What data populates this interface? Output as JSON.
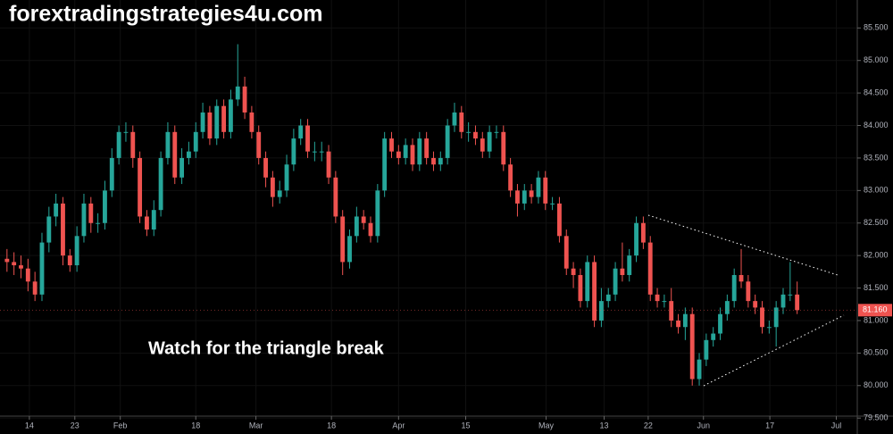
{
  "chart_data": {
    "type": "candlestick",
    "watermark": "forextradingstrategies4u.com",
    "annotation": "Watch for the triangle break",
    "up_color": "#26a69a",
    "down_color": "#ef5350",
    "ylim": [
      79.53,
      85.93
    ],
    "yticks": [
      {
        "value": 79.5,
        "label": "79.500"
      },
      {
        "value": 80,
        "label": "80.000"
      },
      {
        "value": 80.5,
        "label": "80.500"
      },
      {
        "value": 81,
        "label": "81.000"
      },
      {
        "value": 81.5,
        "label": "81.500"
      },
      {
        "value": 82,
        "label": "82.000"
      },
      {
        "value": 82.5,
        "label": "82.500"
      },
      {
        "value": 83,
        "label": "83.000"
      },
      {
        "value": 83.5,
        "label": "83.500"
      },
      {
        "value": 84,
        "label": "84.000"
      },
      {
        "value": 84.5,
        "label": "84.500"
      },
      {
        "value": 85,
        "label": "85.000"
      },
      {
        "value": 85.5,
        "label": "85.500"
      }
    ],
    "xlim": [
      -1,
      121.6
    ],
    "xticks": [
      {
        "value": 3.2,
        "label": "14"
      },
      {
        "value": 9.7,
        "label": "23"
      },
      {
        "value": 16.2,
        "label": "Feb"
      },
      {
        "value": 27,
        "label": "18"
      },
      {
        "value": 35.6,
        "label": "Mar"
      },
      {
        "value": 46.4,
        "label": "18"
      },
      {
        "value": 56,
        "label": "Apr"
      },
      {
        "value": 65.6,
        "label": "15"
      },
      {
        "value": 77.1,
        "label": "May"
      },
      {
        "value": 85.4,
        "label": "13"
      },
      {
        "value": 91.7,
        "label": "22"
      },
      {
        "value": 99.6,
        "label": "Jun"
      },
      {
        "value": 109.1,
        "label": "17"
      },
      {
        "value": 118.6,
        "label": "Jul"
      }
    ],
    "last_price": {
      "value": 81.16,
      "label": "81.160"
    },
    "open": [
      81.95,
      81.9,
      81.85,
      81.8,
      81.6,
      81.4,
      82.2,
      82.6,
      82.8,
      82.0,
      81.85,
      82.3,
      82.8,
      82.5,
      82.5,
      83.0,
      83.5,
      83.9,
      83.9,
      83.5,
      82.6,
      82.4,
      82.7,
      83.5,
      83.9,
      83.2,
      83.5,
      83.6,
      83.9,
      84.2,
      83.8,
      84.3,
      83.9,
      84.4,
      84.6,
      84.2,
      83.9,
      83.5,
      83.2,
      82.9,
      83.0,
      83.4,
      83.8,
      84.0,
      83.6,
      83.6,
      83.6,
      83.2,
      82.6,
      81.9,
      82.3,
      82.6,
      82.5,
      82.3,
      83.0,
      83.8,
      83.6,
      83.5,
      83.7,
      83.4,
      83.8,
      83.5,
      83.4,
      83.5,
      84.0,
      84.2,
      83.9,
      83.9,
      83.8,
      83.6,
      83.9,
      83.9,
      83.4,
      83.0,
      82.8,
      83.0,
      82.9,
      83.2,
      82.8,
      82.8,
      82.3,
      81.8,
      81.7,
      81.3,
      81.9,
      81.0,
      81.3,
      81.4,
      81.8,
      81.7,
      82.0,
      82.5,
      82.2,
      81.4,
      81.3,
      81.3,
      81.0,
      80.9,
      81.1,
      80.1,
      80.4,
      80.7,
      80.8,
      81.1,
      81.3,
      81.7,
      81.6,
      81.3,
      81.2,
      80.9,
      80.9,
      81.2,
      81.4,
      81.4
    ],
    "high": [
      82.1,
      82.05,
      82.0,
      81.95,
      81.75,
      82.35,
      82.75,
      82.95,
      82.9,
      82.1,
      82.45,
      82.95,
      82.9,
      82.65,
      83.15,
      83.65,
      84.0,
      84.05,
      84.0,
      83.6,
      82.7,
      82.85,
      83.6,
      84.05,
      84.0,
      83.65,
      83.75,
      84.05,
      84.35,
      84.3,
      84.4,
      84.4,
      84.55,
      85.25,
      84.75,
      84.3,
      84.0,
      83.6,
      83.3,
      83.15,
      83.55,
      83.95,
      84.1,
      84.1,
      83.75,
      83.75,
      83.7,
      83.3,
      82.7,
      82.4,
      82.75,
      82.7,
      82.6,
      83.1,
      83.9,
      83.9,
      83.7,
      83.8,
      83.8,
      83.9,
      83.9,
      83.6,
      83.6,
      84.1,
      84.35,
      84.3,
      84.05,
      84.0,
      83.9,
      84.0,
      84.0,
      84.0,
      83.5,
      83.1,
      83.1,
      83.1,
      83.3,
      83.3,
      82.9,
      82.9,
      82.4,
      81.9,
      81.8,
      82.0,
      82.0,
      81.5,
      81.5,
      81.9,
      82.2,
      82.1,
      82.6,
      82.6,
      82.3,
      81.5,
      81.4,
      81.5,
      81.1,
      81.2,
      81.2,
      80.5,
      80.8,
      80.9,
      81.2,
      81.4,
      81.8,
      82.1,
      81.7,
      81.4,
      81.3,
      81.0,
      81.3,
      81.5,
      81.9,
      81.6
    ],
    "low": [
      81.75,
      81.7,
      81.65,
      81.45,
      81.3,
      81.3,
      82.05,
      82.45,
      81.85,
      81.75,
      81.75,
      82.2,
      82.35,
      82.35,
      82.4,
      82.9,
      83.4,
      83.75,
      83.35,
      82.5,
      82.3,
      82.3,
      82.6,
      83.4,
      83.1,
      83.1,
      83.4,
      83.5,
      83.8,
      83.7,
      83.7,
      83.8,
      83.8,
      84.3,
      84.1,
      83.8,
      83.4,
      83.05,
      82.75,
      82.8,
      82.9,
      83.3,
      83.7,
      83.5,
      83.45,
      83.45,
      83.1,
      82.5,
      81.7,
      81.8,
      82.2,
      82.4,
      82.2,
      82.2,
      82.9,
      83.5,
      83.4,
      83.4,
      83.3,
      83.3,
      83.4,
      83.3,
      83.3,
      83.4,
      83.9,
      83.8,
      83.75,
      83.7,
      83.5,
      83.5,
      83.8,
      83.3,
      82.9,
      82.6,
      82.7,
      82.8,
      82.8,
      82.7,
      82.7,
      82.2,
      81.7,
      81.5,
      81.2,
      81.2,
      80.9,
      80.9,
      81.2,
      81.3,
      81.6,
      81.6,
      81.9,
      82.1,
      81.3,
      81.2,
      81.2,
      80.9,
      80.8,
      80.7,
      80.0,
      80.0,
      80.3,
      80.6,
      80.7,
      81.0,
      81.2,
      81.5,
      81.2,
      81.1,
      80.8,
      80.8,
      80.6,
      81.1,
      81.3,
      81.1
    ],
    "close": [
      81.9,
      81.85,
      81.8,
      81.6,
      81.4,
      82.2,
      82.6,
      82.8,
      82.0,
      81.85,
      82.3,
      82.8,
      82.5,
      82.5,
      83.0,
      83.5,
      83.9,
      83.9,
      83.5,
      82.6,
      82.4,
      82.7,
      83.5,
      83.9,
      83.2,
      83.5,
      83.6,
      83.9,
      84.2,
      83.8,
      84.3,
      83.9,
      84.4,
      84.6,
      84.2,
      83.9,
      83.5,
      83.2,
      82.9,
      83.0,
      83.4,
      83.8,
      84.0,
      83.6,
      83.6,
      83.6,
      83.2,
      82.6,
      81.9,
      82.3,
      82.6,
      82.5,
      82.3,
      83.0,
      83.8,
      83.6,
      83.5,
      83.7,
      83.4,
      83.8,
      83.5,
      83.4,
      83.5,
      84.0,
      84.2,
      83.9,
      83.9,
      83.8,
      83.6,
      83.9,
      83.9,
      83.4,
      83.0,
      82.8,
      83.0,
      82.9,
      83.2,
      82.8,
      82.8,
      82.3,
      81.8,
      81.7,
      81.3,
      81.9,
      81.0,
      81.3,
      81.4,
      81.8,
      81.7,
      82.0,
      82.5,
      82.2,
      81.4,
      81.3,
      81.3,
      81.0,
      80.9,
      81.1,
      80.1,
      80.4,
      80.7,
      80.8,
      81.1,
      81.3,
      81.7,
      81.6,
      81.3,
      81.2,
      80.9,
      80.9,
      81.2,
      81.4,
      81.4,
      81.16
    ]
  }
}
